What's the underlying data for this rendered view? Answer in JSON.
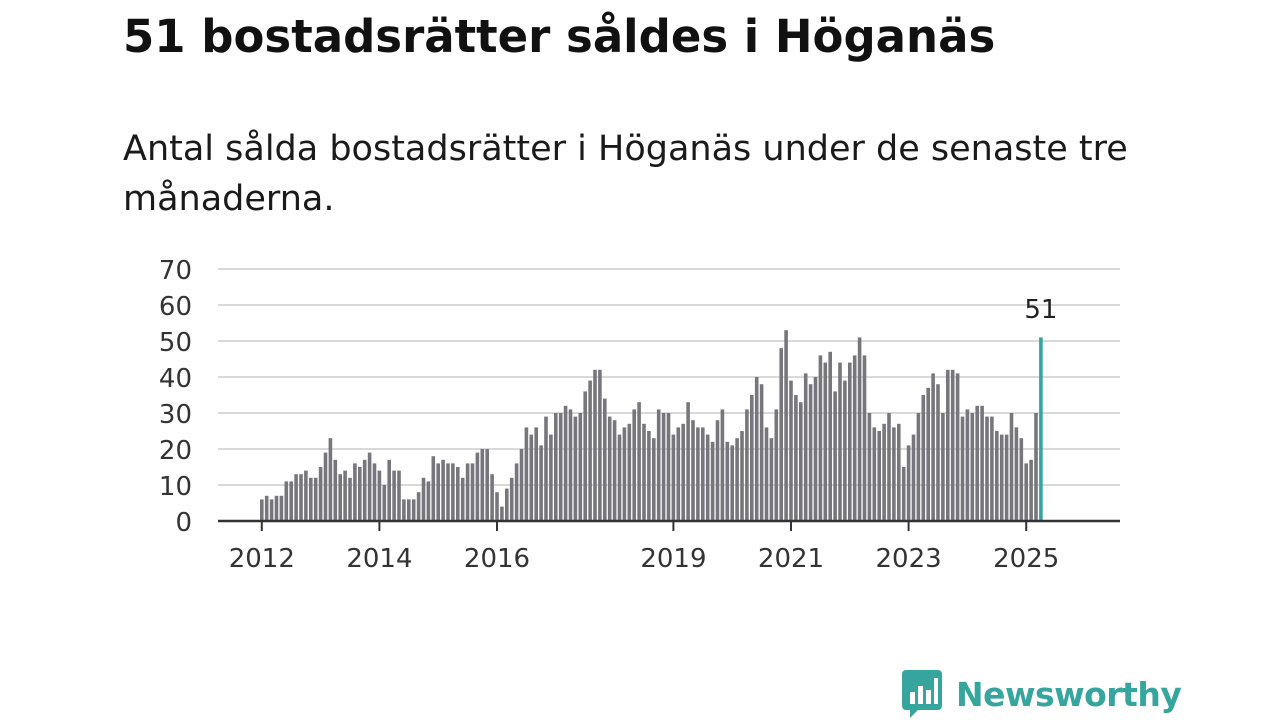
{
  "title": "51 bostadsrätter såldes i Höganäs",
  "subtitle": "Antal sålda bostadsrätter i Höganäs under de senaste tre månaderna.",
  "logo": {
    "text": "Newsworthy",
    "icon": "bar-chart-speech-icon",
    "color": "#36a59d"
  },
  "chart_data": {
    "type": "bar",
    "title": "",
    "xlabel": "",
    "ylabel": "",
    "ylim": [
      0,
      70
    ],
    "yticks": [
      0,
      10,
      20,
      30,
      40,
      50,
      60,
      70
    ],
    "xtick_labels": [
      "2012",
      "2014",
      "2016",
      "2019",
      "2021",
      "2023",
      "2025"
    ],
    "grid": true,
    "bar_color": "#77767c",
    "highlight_color": "#36a59d",
    "highlight_label": "51",
    "series": [
      {
        "values": [
          6,
          7,
          6,
          7,
          7,
          11,
          11,
          13,
          13,
          14,
          12,
          12,
          15,
          19,
          23,
          17,
          13,
          14,
          12,
          16,
          15,
          17,
          19,
          16,
          14,
          10,
          17,
          14,
          14,
          6,
          6,
          6,
          8,
          12,
          11,
          18,
          16,
          17,
          16,
          16,
          15,
          12,
          16,
          16,
          19,
          20,
          20,
          13,
          8,
          4,
          9,
          12,
          16,
          20,
          26,
          24,
          26,
          21,
          29,
          24,
          30,
          30,
          32,
          31,
          29,
          30,
          36,
          39,
          42,
          42,
          34,
          29,
          28,
          24,
          26,
          27,
          31,
          33,
          27,
          25,
          23,
          31,
          30,
          30,
          24,
          26,
          27,
          33,
          28,
          26,
          26,
          24,
          22,
          28,
          31,
          22,
          21,
          23,
          25,
          31,
          35,
          40,
          38,
          26,
          23,
          31,
          48,
          53,
          39,
          35,
          33,
          41,
          38,
          40,
          46,
          44,
          47,
          36,
          44,
          39,
          44,
          46,
          51,
          46,
          30,
          26,
          25,
          27,
          30,
          26,
          27,
          15,
          21,
          24,
          30,
          35,
          37,
          41,
          38,
          30,
          42,
          42,
          41,
          29,
          31,
          30,
          32,
          32,
          29,
          29,
          25,
          24,
          24,
          30,
          26,
          23,
          16,
          17,
          30,
          51
        ]
      }
    ]
  }
}
